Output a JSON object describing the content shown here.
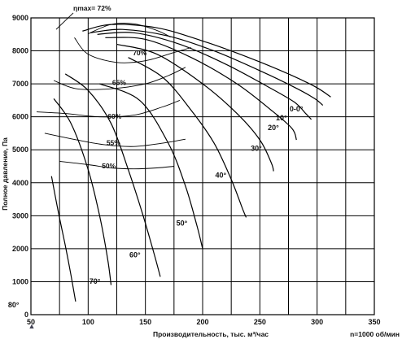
{
  "chart_data": {
    "type": "line",
    "title": "",
    "xlabel": "Производительность, тыс. м³/час",
    "ylabel": "Полное давление, Па",
    "speed_note": "n=1000 об/мин",
    "xlim": [
      50,
      350
    ],
    "ylim": [
      0,
      9000
    ],
    "x_ticks": [
      50,
      100,
      150,
      200,
      250,
      300,
      350
    ],
    "y_ticks": [
      0,
      1000,
      2000,
      3000,
      4000,
      5000,
      6000,
      7000,
      8000,
      9000
    ],
    "x_grid_step": 25,
    "grid": true,
    "marker": "▲",
    "series": [
      {
        "name": "0-0°",
        "label_at": [
          276,
          6170
        ],
        "points": [
          [
            95,
            8600
          ],
          [
            120,
            8800
          ],
          [
            160,
            8700
          ],
          [
            200,
            8300
          ],
          [
            240,
            7800
          ],
          [
            275,
            7300
          ],
          [
            299,
            6900
          ],
          [
            312,
            6600
          ]
        ]
      },
      {
        "name": "10°",
        "label_at": [
          264,
          5890
        ],
        "points": [
          [
            102,
            8550
          ],
          [
            130,
            8650
          ],
          [
            170,
            8450
          ],
          [
            210,
            8000
          ],
          [
            250,
            7400
          ],
          [
            280,
            6900
          ],
          [
            298,
            6550
          ],
          [
            305,
            6350
          ]
        ]
      },
      {
        "name": "20°",
        "label_at": [
          257,
          5600
        ],
        "points": [
          [
            108,
            8500
          ],
          [
            140,
            8550
          ],
          [
            180,
            8200
          ],
          [
            220,
            7600
          ],
          [
            255,
            6950
          ],
          [
            280,
            6450
          ],
          [
            290,
            6100
          ],
          [
            295,
            5920
          ]
        ]
      },
      {
        "name": "30°",
        "label_at": [
          242,
          4970
        ],
        "points": [
          [
            115,
            8400
          ],
          [
            150,
            8350
          ],
          [
            190,
            7800
          ],
          [
            230,
            7000
          ],
          [
            260,
            6200
          ],
          [
            278,
            5650
          ],
          [
            282,
            5300
          ]
        ]
      },
      {
        "name": "40°",
        "label_at": [
          211,
          4160
        ],
        "points": [
          [
            125,
            8200
          ],
          [
            160,
            7900
          ],
          [
            200,
            7000
          ],
          [
            230,
            6100
          ],
          [
            250,
            5300
          ],
          [
            260,
            4600
          ],
          [
            262,
            4350
          ]
        ]
      },
      {
        "name": "50°",
        "label_at": [
          177,
          2700
        ],
        "points": [
          [
            135,
            7800
          ],
          [
            165,
            7200
          ],
          [
            190,
            6200
          ],
          [
            210,
            5200
          ],
          [
            225,
            4100
          ],
          [
            235,
            3200
          ],
          [
            238,
            2950
          ]
        ]
      },
      {
        "name": "60°",
        "label_at": [
          136,
          1740
        ],
        "points": [
          [
            110,
            7000
          ],
          [
            145,
            6500
          ],
          [
            170,
            5200
          ],
          [
            185,
            3900
          ],
          [
            195,
            2700
          ],
          [
            200,
            2000
          ]
        ]
      },
      {
        "name": "70°",
        "label_at": [
          101,
          935
        ],
        "points": [
          [
            80,
            7300
          ],
          [
            100,
            6800
          ],
          [
            120,
            5800
          ],
          [
            135,
            4400
          ],
          [
            148,
            3000
          ],
          [
            158,
            1800
          ],
          [
            163,
            1150
          ]
        ]
      },
      {
        "name": "80°",
        "label_at": [
          30,
          220
        ],
        "points": [
          [
            70,
            6550
          ],
          [
            85,
            5800
          ],
          [
            100,
            4400
          ],
          [
            110,
            3000
          ],
          [
            117,
            1700
          ],
          [
            120,
            900
          ]
        ]
      },
      {
        "name": "",
        "points": [
          [
            68,
            4200
          ],
          [
            74,
            3100
          ],
          [
            80,
            2100
          ],
          [
            85,
            1200
          ],
          [
            89,
            400
          ]
        ]
      }
    ],
    "efficiency_isolines": [
      {
        "name": "ηmax= 72%",
        "label_at": [
          87,
          9225
        ],
        "points": [
          [
            100,
            8520
          ],
          [
            120,
            8800
          ],
          [
            140,
            8820
          ],
          [
            160,
            8620
          ],
          [
            172,
            8420
          ]
        ]
      },
      {
        "name": "70%",
        "label_at": [
          139,
          7860
        ],
        "points": [
          [
            88,
            8400
          ],
          [
            100,
            7900
          ],
          [
            125,
            7650
          ],
          [
            150,
            7700
          ],
          [
            175,
            7950
          ],
          [
            190,
            8100
          ]
        ]
      },
      {
        "name": "65%",
        "label_at": [
          121,
          6965
        ],
        "points": [
          [
            70,
            7100
          ],
          [
            90,
            6850
          ],
          [
            120,
            6850
          ],
          [
            150,
            7000
          ],
          [
            170,
            7250
          ],
          [
            185,
            7500
          ]
        ]
      },
      {
        "name": "60%",
        "label_at": [
          117,
          5945
        ],
        "points": [
          [
            55,
            6150
          ],
          [
            80,
            6100
          ],
          [
            110,
            6000
          ],
          [
            140,
            6050
          ],
          [
            165,
            6300
          ],
          [
            180,
            6500
          ]
        ]
      },
      {
        "name": "55%",
        "label_at": [
          116,
          5145
        ],
        "points": [
          [
            62,
            5500
          ],
          [
            90,
            5300
          ],
          [
            115,
            5150
          ],
          [
            140,
            5100
          ],
          [
            165,
            5200
          ],
          [
            185,
            5320
          ]
        ]
      },
      {
        "name": "50%",
        "label_at": [
          112,
          4440
        ],
        "points": [
          [
            75,
            4650
          ],
          [
            100,
            4550
          ],
          [
            120,
            4450
          ],
          [
            140,
            4420
          ],
          [
            160,
            4450
          ],
          [
            175,
            4500
          ]
        ]
      }
    ],
    "callout_line": [
      [
        87,
        9150
      ],
      [
        72,
        8650
      ]
    ]
  }
}
